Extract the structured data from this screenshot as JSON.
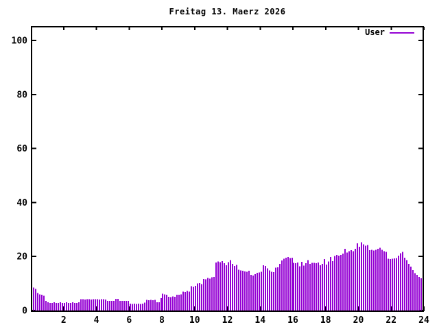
{
  "window": {
    "background": "#ffffff"
  },
  "chart_data": {
    "type": "bar",
    "title": "Freitag 13. Maerz 2026",
    "xlabel": "",
    "ylabel": "",
    "xlim": [
      0,
      24
    ],
    "ylim": [
      0,
      105.5
    ],
    "xticks": [
      2,
      4,
      6,
      8,
      10,
      12,
      14,
      16,
      18,
      20,
      22,
      24
    ],
    "yticks": [
      0,
      20,
      40,
      60,
      80,
      100
    ],
    "grid": false,
    "legend_position": "top-right-inside",
    "bar_color": "#9400d3",
    "axis_color": "#000000",
    "samples_per_hour": 8,
    "legend": [
      {
        "label": "User",
        "color": "#9400d3"
      }
    ],
    "series_name": "User",
    "values": [
      9.0,
      8.5,
      8.0,
      6.5,
      6.0,
      5.8,
      5.5,
      3.6,
      3.0,
      2.8,
      2.8,
      3.0,
      2.8,
      2.8,
      3.0,
      2.8,
      2.8,
      3.0,
      2.8,
      2.8,
      3.0,
      2.8,
      2.8,
      3.0,
      4.2,
      4.2,
      4.0,
      4.2,
      4.2,
      4.0,
      4.2,
      4.2,
      4.2,
      4.0,
      4.2,
      4.2,
      4.0,
      3.6,
      3.6,
      3.6,
      3.6,
      4.3,
      4.3,
      3.6,
      3.6,
      3.5,
      3.6,
      3.5,
      2.5,
      2.4,
      2.5,
      2.4,
      2.5,
      2.4,
      2.5,
      2.9,
      3.9,
      3.8,
      3.9,
      3.8,
      3.9,
      3.0,
      3.0,
      4.6,
      6.2,
      6.0,
      5.8,
      5.1,
      5.0,
      5.2,
      5.1,
      5.9,
      5.8,
      6.0,
      7.0,
      6.8,
      7.2,
      7.0,
      9.0,
      8.8,
      9.2,
      10.0,
      10.2,
      9.8,
      11.7,
      11.5,
      12.0,
      11.8,
      12.3,
      12.5,
      17.8,
      18.2,
      17.9,
      18.3,
      17.5,
      16.8,
      17.9,
      18.7,
      17.3,
      16.5,
      16.9,
      15.1,
      14.9,
      14.7,
      14.5,
      14.3,
      14.7,
      13.2,
      12.9,
      13.5,
      13.9,
      14.1,
      14.3,
      16.8,
      16.5,
      15.6,
      14.9,
      14.3,
      14.2,
      15.9,
      16.0,
      17.2,
      18.5,
      19.2,
      19.6,
      19.8,
      19.4,
      19.6,
      17.7,
      17.5,
      17.8,
      16.4,
      18.0,
      16.6,
      17.5,
      18.7,
      17.2,
      17.6,
      17.7,
      17.5,
      17.8,
      16.8,
      17.2,
      19.0,
      17.0,
      18.1,
      19.8,
      18.3,
      20.2,
      20.6,
      20.3,
      20.5,
      21.1,
      22.8,
      21.5,
      21.9,
      22.3,
      22.0,
      22.8,
      24.9,
      23.6,
      25.3,
      24.5,
      24.0,
      24.3,
      22.3,
      22.5,
      22.2,
      22.4,
      22.8,
      23.2,
      22.5,
      21.9,
      21.7,
      19.2,
      19.0,
      19.1,
      19.3,
      19.4,
      20.3,
      21.2,
      21.7,
      19.6,
      18.6,
      17.2,
      16.3,
      15.0,
      13.8,
      13.2,
      12.4,
      11.9,
      11.4
    ]
  }
}
